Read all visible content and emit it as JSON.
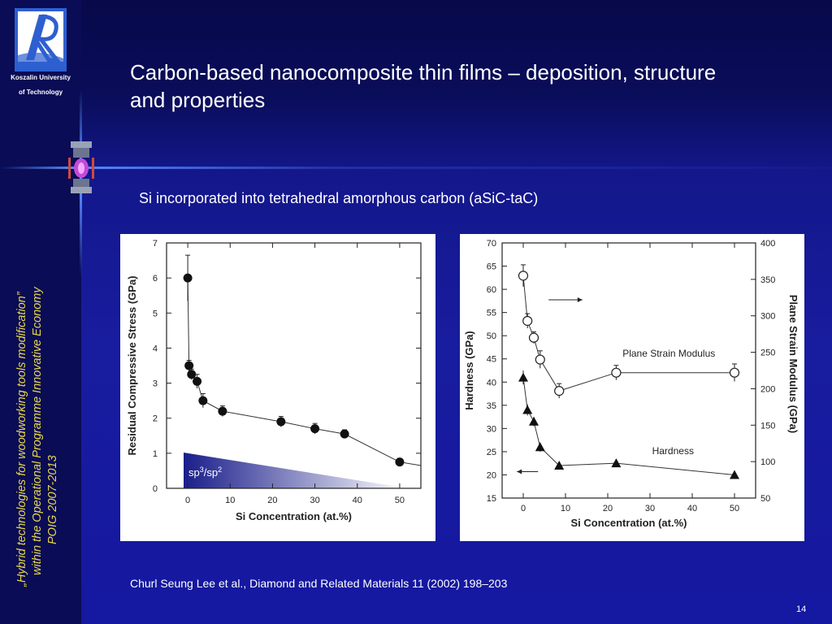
{
  "sidebar": {
    "university_line1": "Koszalin University",
    "university_line2": "of Technology",
    "vertical_text": [
      "„Hybrid technologies for woodworking tools modification”",
      "within the Operational Programme Innovative Economy",
      "POIG 2007-2013"
    ]
  },
  "slide": {
    "title_line1": "Carbon-based nanocomposite thin films – deposition, structure",
    "title_line2": "and properties",
    "subtitle": "Si incorporated into tetrahedral amorphous carbon (aSiC-taC)",
    "citation": "Churl Seung Lee et al., Diamond and Related Materials 11 (2002) 198–203",
    "page_number": "14"
  },
  "chart_data": [
    {
      "type": "scatter",
      "xlabel": "Si Concentration (at.%)",
      "ylabel": "Residual Compressive Stress (GPa)",
      "xlim": [
        -5,
        55
      ],
      "ylim": [
        0,
        7
      ],
      "xticks": [
        0,
        10,
        20,
        30,
        40,
        50
      ],
      "yticks": [
        0,
        1,
        2,
        3,
        4,
        5,
        6,
        7
      ],
      "series": [
        {
          "x": [
            0,
            0.3,
            0.9,
            2.2,
            3.6,
            8.2,
            22,
            30,
            37,
            50,
            55
          ],
          "y": [
            6.0,
            3.5,
            3.25,
            3.05,
            2.5,
            2.2,
            1.9,
            1.7,
            1.55,
            0.75,
            0.65
          ],
          "err": [
            0.65,
            0.15,
            0.15,
            0.2,
            0.2,
            0.15,
            0.15,
            0.15,
            0.12,
            0.05,
            0
          ]
        }
      ],
      "annotation": {
        "text_base1": "sp",
        "sup1": "3",
        "text_base2": "/sp",
        "sup2": "2"
      },
      "annotation_gradient": [
        "#1a1e8a",
        "#ffffff"
      ]
    },
    {
      "type": "scatter",
      "xlabel": "Si Concentration (at.%)",
      "ylabel": "Hardness (GPa)",
      "y2label": "Plane Strain Modulus (GPa)",
      "xlim": [
        -5,
        55
      ],
      "ylim": [
        15,
        70
      ],
      "y2lim": [
        50,
        400
      ],
      "xticks": [
        0,
        10,
        20,
        30,
        40,
        50
      ],
      "yticks": [
        15,
        20,
        25,
        30,
        35,
        40,
        45,
        50,
        55,
        60,
        65,
        70
      ],
      "y2ticks": [
        50,
        100,
        150,
        200,
        250,
        300,
        350,
        400
      ],
      "series": [
        {
          "name": "Plane Strain Modulus",
          "axis": "right",
          "marker": "open-circle",
          "x": [
            0,
            1,
            2.5,
            4,
            8.5,
            22,
            50
          ],
          "y": [
            355,
            293,
            270,
            240,
            197,
            222,
            222
          ],
          "err": [
            15,
            10,
            8,
            12,
            10,
            10,
            12
          ]
        },
        {
          "name": "Hardness",
          "axis": "left",
          "marker": "filled-triangle",
          "x": [
            0,
            1,
            2.5,
            4,
            8.5,
            22,
            50
          ],
          "y": [
            41,
            34,
            31.5,
            26,
            22,
            22.5,
            20
          ],
          "err": [
            1.5,
            1.2,
            1,
            1,
            0.8,
            0.8,
            0.5
          ]
        }
      ]
    }
  ]
}
